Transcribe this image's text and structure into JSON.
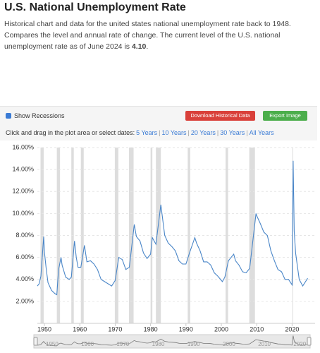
{
  "header": {
    "title": "U.S. National Unemployment Rate",
    "description": "Historical chart and data for the united states national unemployment rate back to 1948. Compares the level and annual rate of change. The current level of the U.S. national unemployment rate as of June 2024 is ",
    "current_value": "4.10",
    "description_end": "."
  },
  "toolbar": {
    "checkbox": "Show Recessions",
    "download": "Download Historical Data",
    "export": "Export Image",
    "range_prompt": "Click and drag in the plot area or select dates:",
    "ranges": [
      "5 Years",
      "10 Years",
      "20 Years",
      "30 Years",
      "All Years"
    ]
  },
  "chart_data": {
    "type": "line",
    "color": "#4a86c8",
    "show_recessions": true,
    "grid": true,
    "x": [
      1948.0,
      1948.5,
      1949.0,
      1949.8,
      1950.0,
      1950.5,
      1951.0,
      1952.0,
      1953.0,
      1953.5,
      1954.0,
      1954.7,
      1955.0,
      1956.0,
      1957.0,
      1957.6,
      1958.5,
      1959.0,
      1959.5,
      1960.3,
      1961.3,
      1962.0,
      1963.0,
      1964.0,
      1965.0,
      1966.0,
      1967.0,
      1968.0,
      1969.0,
      1970.0,
      1971.0,
      1972.0,
      1973.0,
      1974.0,
      1975.4,
      1976.0,
      1977.0,
      1978.0,
      1979.0,
      1980.0,
      1980.5,
      1981.5,
      1982.9,
      1984.0,
      1985.0,
      1986.0,
      1987.0,
      1988.0,
      1989.0,
      1990.0,
      1991.0,
      1992.5,
      1993.0,
      1994.0,
      1995.0,
      1996.0,
      1997.0,
      1998.0,
      1999.0,
      2000.3,
      2001.0,
      2002.0,
      2003.5,
      2004.0,
      2005.0,
      2006.0,
      2007.0,
      2008.0,
      2009.8,
      2010.0,
      2011.0,
      2012.0,
      2013.0,
      2014.0,
      2015.0,
      2016.0,
      2017.0,
      2018.0,
      2019.0,
      2020.0,
      2020.3,
      2020.6,
      2021.0,
      2022.0,
      2023.0,
      2024.4
    ],
    "values": [
      3.4,
      3.6,
      4.3,
      7.9,
      6.5,
      5.0,
      3.7,
      3.0,
      2.7,
      2.6,
      4.9,
      6.0,
      5.3,
      4.2,
      4.0,
      4.2,
      7.5,
      6.0,
      5.1,
      5.1,
      7.1,
      5.6,
      5.7,
      5.4,
      4.9,
      4.0,
      3.8,
      3.6,
      3.4,
      3.9,
      6.0,
      5.8,
      4.9,
      5.1,
      9.0,
      7.9,
      7.5,
      6.4,
      5.9,
      6.3,
      7.8,
      7.2,
      10.8,
      8.0,
      7.3,
      7.0,
      6.6,
      5.7,
      5.4,
      5.4,
      6.4,
      7.8,
      7.3,
      6.6,
      5.6,
      5.6,
      5.3,
      4.6,
      4.3,
      3.8,
      4.2,
      5.7,
      6.3,
      5.7,
      5.3,
      4.7,
      4.6,
      5.0,
      10.0,
      9.8,
      9.1,
      8.3,
      8.0,
      6.6,
      5.7,
      4.9,
      4.7,
      4.0,
      4.0,
      3.5,
      14.8,
      8.4,
      6.4,
      4.0,
      3.4,
      4.1
    ],
    "recessions": [
      [
        1948.9,
        1949.8
      ],
      [
        1953.5,
        1954.4
      ],
      [
        1957.6,
        1958.3
      ],
      [
        1960.3,
        1961.1
      ],
      [
        1969.9,
        1970.9
      ],
      [
        1973.9,
        1975.2
      ],
      [
        1980.0,
        1980.5
      ],
      [
        1981.5,
        1982.9
      ],
      [
        1990.5,
        1991.2
      ],
      [
        2001.2,
        2001.9
      ],
      [
        2007.9,
        2009.5
      ],
      [
        2020.1,
        2020.3
      ]
    ],
    "xlim": [
      1948,
      2024.5
    ],
    "xticks": [
      1950,
      1960,
      1970,
      1980,
      1990,
      2000,
      2010,
      2020
    ],
    "ylim": [
      0,
      16
    ],
    "yticks": [
      {
        "value": 2,
        "label": "2.00%"
      },
      {
        "value": 4,
        "label": "4.00%"
      },
      {
        "value": 6,
        "label": "6.00%"
      },
      {
        "value": 8,
        "label": "8.00%"
      },
      {
        "value": 10,
        "label": "10.00%"
      },
      {
        "value": 12,
        "label": "12.00%"
      },
      {
        "value": 14,
        "label": "14.00%"
      },
      {
        "value": 16,
        "label": "16.00%"
      }
    ]
  }
}
